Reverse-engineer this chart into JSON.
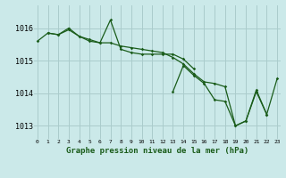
{
  "background_color": "#cbe9e9",
  "plot_bg_color": "#cbe9e9",
  "grid_color": "#aacccc",
  "line_color": "#1a5c1a",
  "marker_color": "#1a5c1a",
  "xlabel": "Graphe pression niveau de la mer (hPa)",
  "ytick_labels": [
    "1013",
    "1014",
    "1015",
    "1016"
  ],
  "ytick_vals": [
    1013,
    1014,
    1015,
    1016
  ],
  "xtick_labels": [
    "0",
    "1",
    "2",
    "3",
    "4",
    "5",
    "6",
    "7",
    "8",
    "9",
    "10",
    "11",
    "12",
    "13",
    "14",
    "15",
    "16",
    "17",
    "18",
    "19",
    "20",
    "21",
    "22",
    "23"
  ],
  "xtick_vals": [
    0,
    1,
    2,
    3,
    4,
    5,
    6,
    7,
    8,
    9,
    10,
    11,
    12,
    13,
    14,
    15,
    16,
    17,
    18,
    19,
    20,
    21,
    22,
    23
  ],
  "xlim": [
    -0.3,
    23.3
  ],
  "ylim": [
    1012.6,
    1016.7
  ],
  "series": [
    [
      1015.6,
      1015.85,
      1015.8,
      1016.0,
      1015.75,
      1015.6,
      1015.55,
      1015.55,
      1015.45,
      1015.4,
      1015.35,
      1015.3,
      1015.25,
      1015.1,
      1014.9,
      1014.6,
      1014.35,
      1014.3,
      1014.2,
      1013.0,
      1013.15,
      1014.1,
      1013.35,
      null
    ],
    [
      null,
      1015.85,
      1015.8,
      1015.95,
      1015.75,
      1015.65,
      1015.55,
      1016.25,
      1015.35,
      1015.25,
      1015.2,
      1015.2,
      1015.2,
      1015.2,
      1015.05,
      1014.75,
      null,
      null,
      null,
      null,
      null,
      null,
      null,
      null
    ],
    [
      null,
      null,
      null,
      1016.0,
      null,
      null,
      null,
      null,
      null,
      null,
      null,
      null,
      null,
      1014.05,
      1014.85,
      1014.55,
      1014.3,
      1013.8,
      1013.75,
      1013.0,
      1013.15,
      1014.05,
      1013.35,
      1014.45
    ]
  ]
}
